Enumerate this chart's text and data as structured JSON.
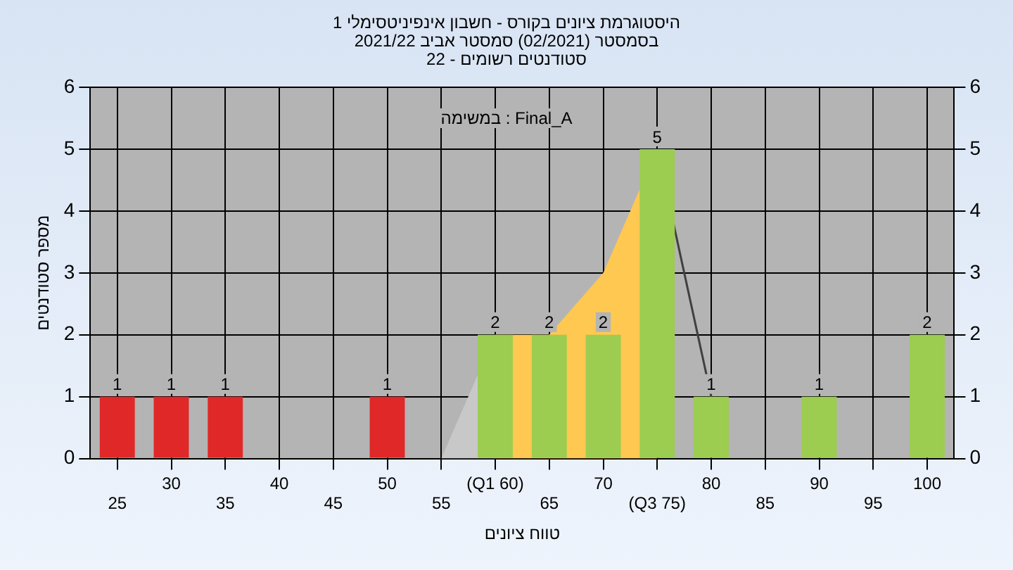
{
  "chart_data": {
    "type": "bar",
    "title": "היסטוגרמת ציונים בקורס - חשבון אינפיניטסימלי 1",
    "subtitle": "בסמסטר  (02/2021)  סמסטר אביב 2021/22\nסטודנטים רשומים - 22",
    "xlabel": "טווח ציונים",
    "ylabel": "מספר סטודנטים",
    "annotations": [
      "Final_A : במשימה"
    ],
    "categories": [
      "25",
      "30",
      "35",
      "40",
      "45",
      "50",
      "55",
      "(Q1 60)",
      "65",
      "70",
      "(Q3 75)",
      "80",
      "85",
      "90",
      "95",
      "100"
    ],
    "series": [
      {
        "type": "area",
        "color": "#c8c8c8",
        "values": [
          null,
          null,
          null,
          null,
          null,
          null,
          0,
          2,
          null,
          null,
          null,
          null,
          null,
          null,
          null,
          null
        ]
      },
      {
        "type": "area",
        "color": "#ffc850",
        "values": [
          null,
          null,
          null,
          null,
          null,
          null,
          null,
          2,
          2,
          3,
          5,
          null,
          null,
          null,
          null,
          null
        ]
      },
      {
        "type": "line",
        "color": "#404040",
        "values": [
          null,
          null,
          null,
          null,
          null,
          null,
          null,
          null,
          null,
          null,
          5,
          1,
          null,
          null,
          null,
          null
        ]
      },
      {
        "type": "bar",
        "colors": [
          "#e02828",
          "#e02828",
          "#e02828",
          "#e02828",
          "#e02828",
          "#e02828",
          "#e02828",
          "#9ccc50",
          "#9ccc50",
          "#9ccc50",
          "#9ccc50",
          "#9ccc50",
          "#9ccc50",
          "#9ccc50",
          "#9ccc50",
          "#9ccc50"
        ],
        "values": [
          1,
          1,
          1,
          0,
          0,
          1,
          0,
          2,
          2,
          2,
          5,
          1,
          0,
          1,
          0,
          2
        ],
        "value_labels": [
          "1",
          "1",
          "1",
          null,
          null,
          "1",
          null,
          "2",
          "2",
          "2",
          "5",
          "1",
          null,
          "1",
          null,
          "2"
        ]
      }
    ],
    "ylim": [
      0,
      6
    ],
    "yticks": [
      0,
      1,
      2,
      3,
      4,
      5,
      6
    ],
    "y2lim": [
      0,
      6
    ],
    "y2ticks": [
      0,
      1,
      2,
      3,
      4,
      5,
      6
    ],
    "grid": true
  }
}
